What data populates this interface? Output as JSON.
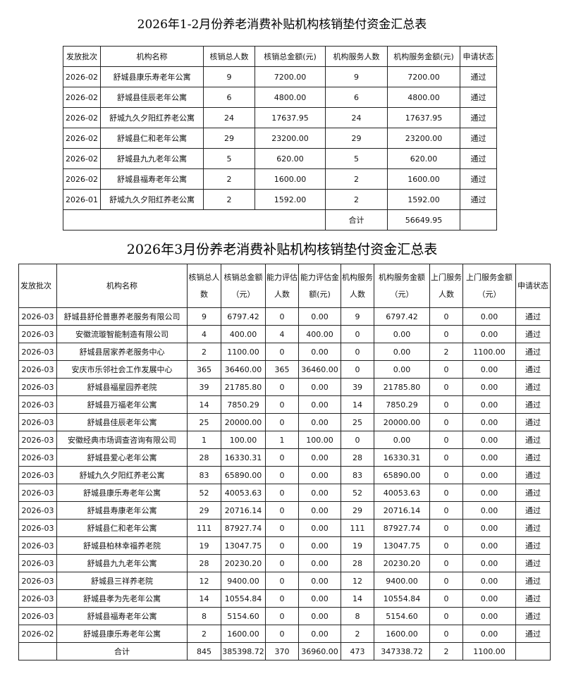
{
  "table1": {
    "title": "2026年1-2月份养老消费补贴机构核销垫付资金汇总表",
    "headers": [
      "发放批次",
      "机构名称",
      "核销总人数",
      "核销总金额(元)",
      "机构服务人数",
      "机构服务金额(元)",
      "申请状态"
    ],
    "rows": [
      [
        "2026-02",
        "舒城县康乐寿老年公寓",
        "9",
        "7200.00",
        "9",
        "7200.00",
        "通过"
      ],
      [
        "2026-02",
        "舒城县佳辰老年公寓",
        "6",
        "4800.00",
        "6",
        "4800.00",
        "通过"
      ],
      [
        "2026-02",
        "舒城九久夕阳红养老公寓",
        "24",
        "17637.95",
        "24",
        "17637.95",
        "通过"
      ],
      [
        "2026-02",
        "舒城县仁和老年公寓",
        "29",
        "23200.00",
        "29",
        "23200.00",
        "通过"
      ],
      [
        "2026-02",
        "舒城县九九老年公寓",
        "5",
        "620.00",
        "5",
        "620.00",
        "通过"
      ],
      [
        "2026-02",
        "舒城县福寿老年公寓",
        "2",
        "1600.00",
        "2",
        "1600.00",
        "通过"
      ],
      [
        "2026-01",
        "舒城九久夕阳红养老公寓",
        "2",
        "1592.00",
        "2",
        "1592.00",
        "通过"
      ]
    ],
    "total_label": "合计",
    "total_amount": "56649.95"
  },
  "table2": {
    "title": "2026年3月份养老消费补贴机构核销垫付资金汇总表",
    "headers": [
      "发放批次",
      "机构名称",
      "核销总人数",
      "核销总金额（元）",
      "能力评估人数",
      "能力评估金额(元)",
      "机构服务人数",
      "机构服务金额（元）",
      "上门服务人数",
      "上门服务金额（元）",
      "申请状态"
    ],
    "rows": [
      [
        "2026-03",
        "舒城县舒伦普惠养老服务有限公司",
        "9",
        "6797.42",
        "0",
        "0.00",
        "9",
        "6797.42",
        "0",
        "0.00",
        "通过"
      ],
      [
        "2026-03",
        "安徽流璇智能制造有限公司",
        "4",
        "400.00",
        "4",
        "400.00",
        "0",
        "0.00",
        "0",
        "0.00",
        "通过"
      ],
      [
        "2026-03",
        "舒城县居家养老服务中心",
        "2",
        "1100.00",
        "0",
        "0.00",
        "0",
        "0.00",
        "2",
        "1100.00",
        "通过"
      ],
      [
        "2026-03",
        "安庆市乐邻社会工作发展中心",
        "365",
        "36460.00",
        "365",
        "36460.00",
        "0",
        "0.00",
        "0",
        "0.00",
        "通过"
      ],
      [
        "2026-03",
        "舒城县福星园养老院",
        "39",
        "21785.80",
        "0",
        "0.00",
        "39",
        "21785.80",
        "0",
        "0.00",
        "通过"
      ],
      [
        "2026-03",
        "舒城县万福老年公寓",
        "14",
        "7850.29",
        "0",
        "0.00",
        "14",
        "7850.29",
        "0",
        "0.00",
        "通过"
      ],
      [
        "2026-03",
        "舒城县佳辰老年公寓",
        "25",
        "20000.00",
        "0",
        "0.00",
        "25",
        "20000.00",
        "0",
        "0.00",
        "通过"
      ],
      [
        "2026-03",
        "安徽经典市场调查咨询有限公司",
        "1",
        "100.00",
        "1",
        "100.00",
        "0",
        "0.00",
        "0",
        "0.00",
        "通过"
      ],
      [
        "2026-03",
        "舒城县爱心老年公寓",
        "28",
        "16330.31",
        "0",
        "0.00",
        "28",
        "16330.31",
        "0",
        "0.00",
        "通过"
      ],
      [
        "2026-03",
        "舒城九久夕阳红养老公寓",
        "83",
        "65890.00",
        "0",
        "0.00",
        "83",
        "65890.00",
        "0",
        "0.00",
        "通过"
      ],
      [
        "2026-03",
        "舒城县康乐寿老年公寓",
        "52",
        "40053.63",
        "0",
        "0.00",
        "52",
        "40053.63",
        "0",
        "0.00",
        "通过"
      ],
      [
        "2026-03",
        "舒城县寿康老年公寓",
        "29",
        "20716.14",
        "0",
        "0.00",
        "29",
        "20716.14",
        "0",
        "0.00",
        "通过"
      ],
      [
        "2026-03",
        "舒城县仁和老年公寓",
        "111",
        "87927.74",
        "0",
        "0.00",
        "111",
        "87927.74",
        "0",
        "0.00",
        "通过"
      ],
      [
        "2026-03",
        "舒城县柏林幸福养老院",
        "19",
        "13047.75",
        "0",
        "0.00",
        "19",
        "13047.75",
        "0",
        "0.00",
        "通过"
      ],
      [
        "2026-03",
        "舒城县九九老年公寓",
        "28",
        "20230.20",
        "0",
        "0.00",
        "28",
        "20230.20",
        "0",
        "0.00",
        "通过"
      ],
      [
        "2026-03",
        "舒城县三祥养老院",
        "12",
        "9400.00",
        "0",
        "0.00",
        "12",
        "9400.00",
        "0",
        "0.00",
        "通过"
      ],
      [
        "2026-03",
        "舒城县孝为先老年公寓",
        "14",
        "10554.84",
        "0",
        "0.00",
        "14",
        "10554.84",
        "0",
        "0.00",
        "通过"
      ],
      [
        "2026-03",
        "舒城县福寿老年公寓",
        "8",
        "5154.60",
        "0",
        "0.00",
        "8",
        "5154.60",
        "0",
        "0.00",
        "通过"
      ],
      [
        "2026-02",
        "舒城县康乐寿老年公寓",
        "2",
        "1600.00",
        "0",
        "0.00",
        "2",
        "1600.00",
        "0",
        "0.00",
        "通过"
      ]
    ],
    "total_row": [
      "",
      "合计",
      "845",
      "385398.72",
      "370",
      "36960.00",
      "473",
      "347338.72",
      "2",
      "1100.00",
      ""
    ]
  }
}
